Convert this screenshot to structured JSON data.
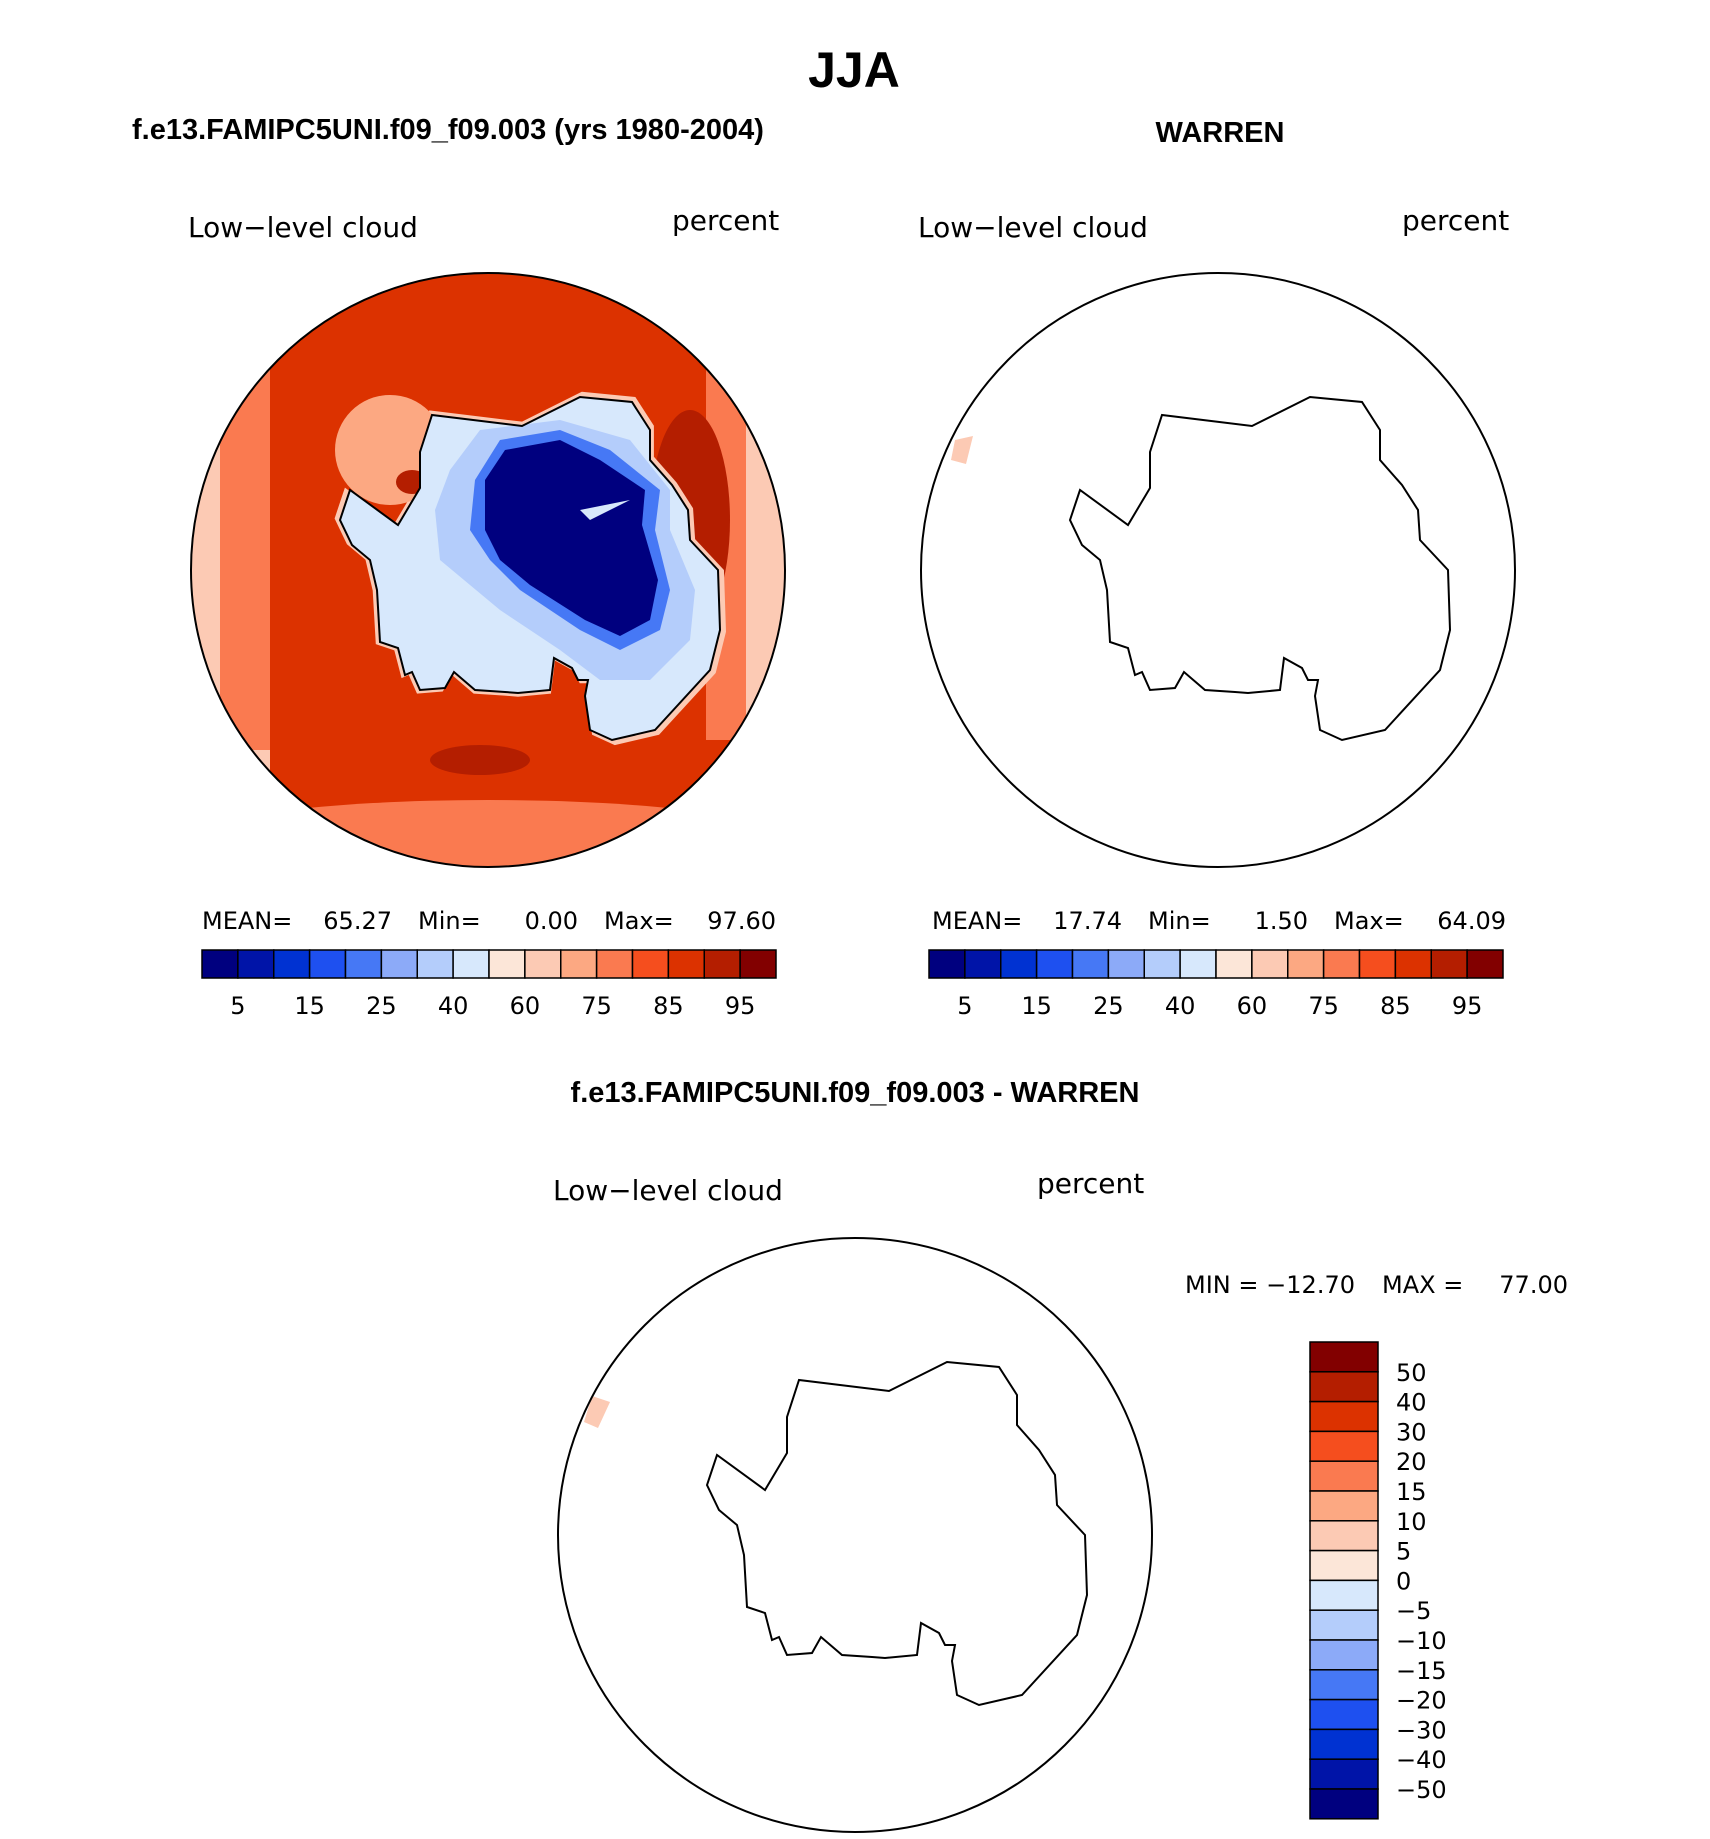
{
  "title": "JJA",
  "panels": {
    "model": {
      "heading": "f.e13.FAMIPC5UNI.f09_f09.003 (yrs 1980-2004)",
      "variable": "Low−level cloud",
      "units": "percent",
      "stats": {
        "mean_label": "MEAN=",
        "mean": "65.27",
        "min_label": "Min=",
        "min": "0.00",
        "max_label": "Max=",
        "max": "97.60"
      }
    },
    "obs": {
      "heading": "WARREN",
      "variable": "Low−level cloud",
      "units": "percent",
      "stats": {
        "mean_label": "MEAN=",
        "mean": "17.74",
        "min_label": "Min=",
        "min": "1.50",
        "max_label": "Max=",
        "max": "64.09"
      }
    },
    "diff": {
      "heading": "f.e13.FAMIPC5UNI.f09_f09.003 - WARREN",
      "variable": "Low−level cloud",
      "units": "percent",
      "stats": {
        "min_label": "MIN =",
        "min": "−12.70",
        "max_label": "MAX =",
        "max": "77.00"
      }
    }
  },
  "colorbar_abs": {
    "colors": [
      "#00007f",
      "#0014a8",
      "#0032d2",
      "#1e50f0",
      "#4678f5",
      "#8caaf8",
      "#b4cdfb",
      "#d7e8fc",
      "#fce6d8",
      "#fccab4",
      "#fca882",
      "#fa7a50",
      "#f54e1e",
      "#dc3200",
      "#b41e00",
      "#820000"
    ],
    "ticks": [
      "5",
      "15",
      "25",
      "40",
      "60",
      "75",
      "85",
      "95"
    ]
  },
  "colorbar_diff": {
    "colors": [
      "#00007f",
      "#0014a8",
      "#0032d2",
      "#1e50f0",
      "#4678f5",
      "#8caaf8",
      "#b4cdfb",
      "#d7e8fc",
      "#fce6d8",
      "#fccab4",
      "#fca882",
      "#fa7a50",
      "#f54e1e",
      "#dc3200",
      "#b41e00",
      "#820000"
    ],
    "ticks": [
      "50",
      "40",
      "30",
      "20",
      "15",
      "10",
      "5",
      "0",
      "−5",
      "−10",
      "−15",
      "−20",
      "−30",
      "−40",
      "−50"
    ]
  }
}
